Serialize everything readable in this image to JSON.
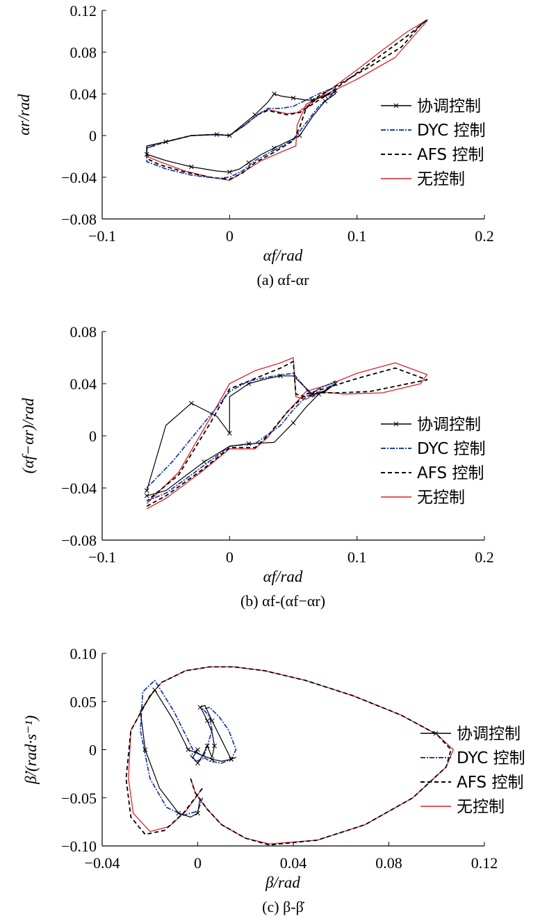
{
  "colors": {
    "coordinated": "#000000",
    "dyc": "#1f3fa8",
    "afs": "#000000",
    "none": "#d9232a",
    "axis": "#000000"
  },
  "chart_data": [
    {
      "type": "line",
      "caption": "(a) αf-αr",
      "xlabel": "αf/rad",
      "ylabel": "αr/rad",
      "xlim": [
        -0.1,
        0.2
      ],
      "ylim": [
        -0.08,
        0.12
      ],
      "xticks": [
        -0.1,
        0,
        0.1,
        0.2
      ],
      "yticks": [
        -0.08,
        -0.04,
        0,
        0.04,
        0.08,
        0.12
      ],
      "xtick_labels": [
        "−0.1",
        "0",
        "0.1",
        "0.2"
      ],
      "ytick_labels": [
        "−0.08",
        "−0.04",
        "0",
        "0.04",
        "0.08",
        "0.12"
      ],
      "legend_position": "right",
      "series": [
        {
          "name": "协调控制",
          "style": "coordinated",
          "x": [
            0.0,
            0.01,
            0.02,
            0.03,
            0.035,
            0.04,
            0.05,
            0.06,
            0.065,
            0.07,
            0.075,
            0.08,
            0.083,
            0.083,
            0.075,
            0.065,
            0.055,
            0.045,
            0.035,
            0.025,
            0.015,
            0.008,
            0.0,
            -0.01,
            -0.03,
            -0.05,
            -0.065,
            -0.065,
            -0.05,
            -0.03,
            -0.01,
            0.0
          ],
          "y": [
            0.0,
            0.01,
            0.02,
            0.032,
            0.04,
            0.038,
            0.036,
            0.034,
            0.034,
            0.036,
            0.038,
            0.04,
            0.043,
            0.04,
            0.033,
            0.018,
            0.0,
            -0.006,
            -0.012,
            -0.018,
            -0.026,
            -0.032,
            -0.035,
            -0.034,
            -0.03,
            -0.024,
            -0.018,
            -0.01,
            -0.006,
            0.0,
            0.001,
            0.0
          ]
        },
        {
          "name": "DYC 控制",
          "style": "dyc",
          "x": [
            0.0,
            0.012,
            0.022,
            0.03,
            0.04,
            0.05,
            0.06,
            0.07,
            0.078,
            0.083,
            0.083,
            0.07,
            0.06,
            0.05,
            0.035,
            0.02,
            0.01,
            0.0,
            -0.01,
            -0.03,
            -0.05,
            -0.065,
            -0.065,
            -0.05,
            -0.03,
            -0.01,
            0.0
          ],
          "y": [
            0.0,
            0.01,
            0.02,
            0.026,
            0.026,
            0.028,
            0.034,
            0.04,
            0.044,
            0.046,
            0.042,
            0.028,
            0.012,
            -0.004,
            -0.014,
            -0.024,
            -0.034,
            -0.04,
            -0.041,
            -0.038,
            -0.032,
            -0.025,
            -0.012,
            -0.006,
            0.0,
            0.001,
            0.0
          ]
        },
        {
          "name": "AFS 控制",
          "style": "afs",
          "x": [
            0.0,
            0.012,
            0.022,
            0.03,
            0.045,
            0.055,
            0.065,
            0.08,
            0.1,
            0.12,
            0.14,
            0.155,
            0.15,
            0.135,
            0.11,
            0.09,
            0.07,
            0.06,
            0.055,
            0.05,
            0.035,
            0.02,
            0.01,
            0.0,
            -0.015,
            -0.035,
            -0.055,
            -0.065,
            -0.065,
            -0.05,
            -0.03,
            -0.01,
            0.0
          ],
          "y": [
            0.0,
            0.01,
            0.02,
            0.024,
            0.02,
            0.022,
            0.03,
            0.042,
            0.06,
            0.078,
            0.096,
            0.111,
            0.106,
            0.085,
            0.066,
            0.052,
            0.038,
            0.026,
            0.008,
            -0.005,
            -0.016,
            -0.026,
            -0.036,
            -0.042,
            -0.04,
            -0.035,
            -0.028,
            -0.022,
            -0.012,
            -0.006,
            0.0,
            0.001,
            0.0
          ]
        },
        {
          "name": "无控制",
          "style": "none",
          "x": [
            0.0,
            0.012,
            0.022,
            0.03,
            0.045,
            0.053,
            0.065,
            0.08,
            0.1,
            0.12,
            0.14,
            0.155,
            0.155,
            0.13,
            0.1,
            0.08,
            0.06,
            0.053,
            0.052,
            0.04,
            0.025,
            0.012,
            0.0,
            -0.015,
            -0.035,
            -0.055,
            -0.065,
            -0.065,
            -0.05,
            -0.03,
            -0.01,
            0.0
          ],
          "y": [
            0.0,
            0.01,
            0.02,
            0.025,
            0.021,
            0.022,
            0.032,
            0.045,
            0.063,
            0.082,
            0.1,
            0.111,
            0.11,
            0.075,
            0.054,
            0.042,
            0.03,
            0.01,
            -0.01,
            -0.016,
            -0.024,
            -0.034,
            -0.043,
            -0.04,
            -0.034,
            -0.025,
            -0.02,
            -0.01,
            -0.006,
            0.0,
            0.001,
            0.0
          ]
        }
      ]
    },
    {
      "type": "line",
      "caption": "(b) αf-(αf−αr)",
      "xlabel": "αf/rad",
      "ylabel": "(αf−αr)/rad",
      "xlim": [
        -0.1,
        0.2
      ],
      "ylim": [
        -0.08,
        0.08
      ],
      "xticks": [
        -0.1,
        0,
        0.1,
        0.2
      ],
      "yticks": [
        -0.08,
        -0.04,
        0,
        0.04,
        0.08
      ],
      "xtick_labels": [
        "−0.1",
        "0",
        "0.1",
        "0.2"
      ],
      "ytick_labels": [
        "−0.08",
        "−0.04",
        "0",
        "0.04",
        "0.08"
      ],
      "legend_position": "right",
      "series": [
        {
          "name": "协调控制",
          "style": "coordinated",
          "x": [
            -0.065,
            -0.05,
            -0.02,
            0.0,
            0.015,
            0.035,
            0.05,
            0.06,
            0.07,
            0.08,
            0.083,
            0.075,
            0.065,
            0.05,
            0.04,
            0.03,
            0.015,
            0.0,
            0.0,
            -0.01,
            -0.03,
            -0.05,
            -0.065
          ],
          "y": [
            -0.046,
            -0.042,
            -0.02,
            -0.008,
            -0.006,
            -0.005,
            0.01,
            0.022,
            0.032,
            0.038,
            0.04,
            0.034,
            0.032,
            0.046,
            0.046,
            0.044,
            0.04,
            0.03,
            0.002,
            0.015,
            0.025,
            0.008,
            -0.042
          ]
        },
        {
          "name": "DYC 控制",
          "style": "dyc",
          "x": [
            -0.065,
            -0.05,
            -0.03,
            0.0,
            0.02,
            0.04,
            0.05,
            0.06,
            0.07,
            0.083,
            0.075,
            0.065,
            0.05,
            0.035,
            0.015,
            0.0,
            -0.02,
            -0.045,
            -0.065
          ],
          "y": [
            -0.05,
            -0.044,
            -0.03,
            -0.008,
            -0.006,
            0.008,
            0.02,
            0.03,
            0.036,
            0.042,
            0.035,
            0.03,
            0.048,
            0.046,
            0.042,
            0.034,
            0.01,
            -0.02,
            -0.04
          ]
        },
        {
          "name": "AFS 控制",
          "style": "afs",
          "x": [
            -0.065,
            -0.05,
            -0.02,
            0.0,
            0.02,
            0.03,
            0.045,
            0.06,
            0.08,
            0.1,
            0.13,
            0.155,
            0.14,
            0.11,
            0.085,
            0.07,
            0.06,
            0.052,
            0.05,
            0.04,
            0.02,
            0.0,
            -0.015,
            -0.04,
            -0.065
          ],
          "y": [
            -0.054,
            -0.046,
            -0.025,
            -0.009,
            -0.009,
            0.0,
            0.018,
            0.032,
            0.038,
            0.044,
            0.052,
            0.043,
            0.04,
            0.034,
            0.033,
            0.033,
            0.03,
            0.032,
            0.057,
            0.052,
            0.044,
            0.036,
            0.01,
            -0.03,
            -0.05
          ]
        },
        {
          "name": "无控制",
          "style": "none",
          "x": [
            -0.065,
            -0.05,
            -0.02,
            0.0,
            0.02,
            0.03,
            0.045,
            0.06,
            0.08,
            0.1,
            0.13,
            0.155,
            0.15,
            0.12,
            0.09,
            0.07,
            0.06,
            0.052,
            0.05,
            0.04,
            0.02,
            0.0,
            -0.015,
            -0.04,
            -0.065
          ],
          "y": [
            -0.056,
            -0.048,
            -0.026,
            -0.01,
            -0.01,
            -0.001,
            0.018,
            0.034,
            0.04,
            0.048,
            0.056,
            0.047,
            0.04,
            0.033,
            0.032,
            0.034,
            0.028,
            0.03,
            0.06,
            0.056,
            0.05,
            0.04,
            0.014,
            -0.028,
            -0.052
          ]
        }
      ]
    },
    {
      "type": "line",
      "caption": "(c) β-β̇",
      "xlabel": "β/rad",
      "ylabel": "β̇/(rad·s⁻¹)",
      "xlim": [
        -0.04,
        0.12
      ],
      "ylim": [
        -0.1,
        0.1
      ],
      "xticks": [
        -0.04,
        0.0,
        0.04,
        0.08,
        0.12
      ],
      "yticks": [
        -0.1,
        -0.05,
        0,
        0.05,
        0.1
      ],
      "xtick_labels": [
        "−0.04",
        "0",
        "0.04",
        "0.08",
        "0.12"
      ],
      "ytick_labels": [
        "−0.10",
        "−0.05",
        "0",
        "0.05",
        "0.10"
      ],
      "legend_position": "right",
      "series": [
        {
          "name": "协调控制",
          "style": "coordinated",
          "x": [
            0.0,
            -0.002,
            0.0,
            0.002,
            0.004,
            0.006,
            0.007,
            0.006,
            0.004,
            0.002,
            0.001,
            0.003,
            0.006,
            0.01,
            0.014,
            0.016,
            0.014,
            0.01,
            0.006,
            0.002,
            -0.004,
            -0.01,
            -0.018,
            -0.024,
            -0.022,
            -0.016,
            -0.008,
            -0.003,
            0.0,
            0.001
          ],
          "y": [
            0.0,
            -0.008,
            -0.014,
            -0.006,
            0.004,
            -0.008,
            0.004,
            0.018,
            0.03,
            0.04,
            0.044,
            0.046,
            0.03,
            0.01,
            -0.01,
            -0.008,
            -0.01,
            -0.012,
            -0.01,
            -0.006,
            0.0,
            0.03,
            0.062,
            0.04,
            0.0,
            -0.04,
            -0.066,
            -0.07,
            -0.066,
            -0.05
          ]
        },
        {
          "name": "DYC 控制",
          "style": "dyc",
          "x": [
            0.0,
            -0.003,
            -0.001,
            0.002,
            0.004,
            0.006,
            0.005,
            0.003,
            0.002,
            0.005,
            0.009,
            0.013,
            0.016,
            0.014,
            0.01,
            0.005,
            -0.002,
            -0.01,
            -0.018,
            -0.023,
            -0.024,
            -0.02,
            -0.013,
            -0.006,
            0.0,
            0.002
          ],
          "y": [
            0.0,
            -0.006,
            -0.012,
            -0.01,
            0.004,
            0.02,
            0.034,
            0.04,
            0.042,
            0.044,
            0.034,
            0.02,
            0.0,
            -0.01,
            -0.014,
            -0.012,
            0.0,
            0.04,
            0.072,
            0.06,
            0.02,
            -0.03,
            -0.06,
            -0.068,
            -0.064,
            -0.05
          ]
        },
        {
          "name": "AFS 控制",
          "style": "afs",
          "x": [
            -0.003,
            -0.001,
            0.004,
            0.01,
            0.02,
            0.03,
            0.05,
            0.07,
            0.09,
            0.104,
            0.106,
            0.1,
            0.085,
            0.065,
            0.045,
            0.028,
            0.015,
            0.005,
            -0.005,
            -0.015,
            -0.02,
            -0.028,
            -0.03,
            -0.028,
            -0.022,
            -0.014,
            -0.006,
            0.002
          ],
          "y": [
            -0.03,
            -0.045,
            -0.062,
            -0.078,
            -0.092,
            -0.099,
            -0.094,
            -0.078,
            -0.05,
            -0.018,
            0.0,
            0.016,
            0.036,
            0.056,
            0.072,
            0.082,
            0.086,
            0.086,
            0.082,
            0.07,
            0.056,
            0.02,
            -0.03,
            -0.07,
            -0.088,
            -0.084,
            -0.066,
            -0.04
          ]
        },
        {
          "name": "无控制",
          "style": "none",
          "x": [
            -0.003,
            -0.001,
            0.004,
            0.01,
            0.02,
            0.03,
            0.05,
            0.07,
            0.09,
            0.104,
            0.107,
            0.1,
            0.085,
            0.065,
            0.045,
            0.028,
            0.015,
            0.005,
            -0.005,
            -0.015,
            -0.02,
            -0.028,
            -0.029,
            -0.027,
            -0.02,
            -0.012,
            -0.005,
            0.002
          ],
          "y": [
            -0.03,
            -0.045,
            -0.062,
            -0.078,
            -0.092,
            -0.098,
            -0.094,
            -0.078,
            -0.05,
            -0.018,
            0.0,
            0.016,
            0.036,
            0.056,
            0.072,
            0.082,
            0.086,
            0.086,
            0.082,
            0.07,
            0.056,
            0.02,
            -0.03,
            -0.066,
            -0.085,
            -0.08,
            -0.064,
            -0.04
          ]
        }
      ]
    }
  ]
}
